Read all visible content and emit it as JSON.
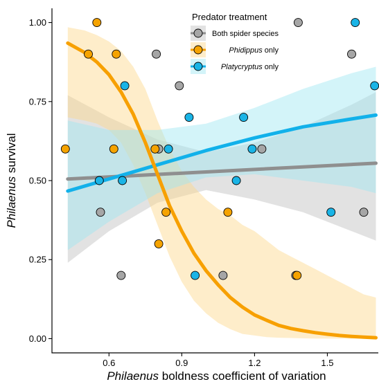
{
  "chart_data": {
    "type": "scatter",
    "xlabel_italic": "Philaenus",
    "xlabel_rest": " boldness coefficient of variation",
    "ylabel_italic": "Philaenus",
    "ylabel_rest": " survival",
    "xlim": [
      0.365,
      1.71
    ],
    "ylim": [
      -0.045,
      1.045
    ],
    "x_ticks": [
      0.6,
      0.9,
      1.2,
      1.5
    ],
    "x_tick_labels": [
      "0.6",
      "0.9",
      "1.2",
      "1.5"
    ],
    "y_ticks": [
      0,
      0.25,
      0.5,
      0.75,
      1.0
    ],
    "y_tick_labels": [
      "0.00",
      "0.25",
      "0.50",
      "0.75",
      "1.00"
    ],
    "legend": {
      "title": "Predator treatment",
      "placement": "top-right",
      "entries": [
        {
          "label": "Both spider species",
          "italic": "",
          "rest": "Both spider species"
        },
        {
          "label": "Phidippus only",
          "italic": "Phidippus",
          "rest": " only"
        },
        {
          "label": "Platycryptus only",
          "italic": "Platycryptus",
          "rest": " only"
        }
      ]
    },
    "series": [
      {
        "name": "Both spider species",
        "point_color": "#a6a6a6",
        "line_color": "#8f8f8f",
        "band_color": "#bfbfbf",
        "points": [
          {
            "x": 0.565,
            "y": 0.4
          },
          {
            "x": 0.65,
            "y": 0.2
          },
          {
            "x": 0.795,
            "y": 0.9
          },
          {
            "x": 0.805,
            "y": 0.6
          },
          {
            "x": 0.89,
            "y": 0.8
          },
          {
            "x": 1.07,
            "y": 0.2
          },
          {
            "x": 1.23,
            "y": 0.6
          },
          {
            "x": 1.37,
            "y": 0.2
          },
          {
            "x": 1.38,
            "y": 1.0
          },
          {
            "x": 1.6,
            "y": 0.9
          },
          {
            "x": 1.65,
            "y": 0.4
          }
        ],
        "fit": {
          "x": [
            0.43,
            1.7
          ],
          "y": [
            0.505,
            0.555
          ]
        },
        "band": {
          "x": [
            0.43,
            0.6,
            0.8,
            1.0,
            1.2,
            1.4,
            1.6,
            1.7
          ],
          "lower": [
            0.24,
            0.34,
            0.43,
            0.47,
            0.44,
            0.4,
            0.34,
            0.31
          ],
          "upper": [
            0.77,
            0.7,
            0.63,
            0.59,
            0.62,
            0.67,
            0.74,
            0.78
          ]
        }
      },
      {
        "name": "Phidippus only",
        "point_color": "#f5a300",
        "line_color": "#f7a000",
        "band_color": "#fcd68a",
        "points": [
          {
            "x": 0.42,
            "y": 0.6
          },
          {
            "x": 0.515,
            "y": 0.9
          },
          {
            "x": 0.55,
            "y": 1.0
          },
          {
            "x": 0.62,
            "y": 0.6
          },
          {
            "x": 0.63,
            "y": 0.9
          },
          {
            "x": 0.79,
            "y": 0.6
          },
          {
            "x": 0.805,
            "y": 0.3
          },
          {
            "x": 0.835,
            "y": 0.4
          },
          {
            "x": 1.09,
            "y": 0.4
          },
          {
            "x": 1.375,
            "y": 0.2
          }
        ],
        "fit": {
          "x": [
            0.43,
            0.5,
            0.55,
            0.6,
            0.65,
            0.7,
            0.75,
            0.8,
            0.85,
            0.9,
            0.95,
            1.0,
            1.05,
            1.1,
            1.15,
            1.2,
            1.25,
            1.3,
            1.35,
            1.4,
            1.45,
            1.5,
            1.55,
            1.6,
            1.65,
            1.7
          ],
          "y": [
            0.935,
            0.905,
            0.875,
            0.835,
            0.78,
            0.71,
            0.62,
            0.52,
            0.42,
            0.34,
            0.27,
            0.215,
            0.17,
            0.13,
            0.1,
            0.075,
            0.058,
            0.042,
            0.032,
            0.025,
            0.019,
            0.014,
            0.01,
            0.007,
            0.005,
            0.003
          ]
        },
        "band": {
          "x": [
            0.43,
            0.5,
            0.55,
            0.6,
            0.65,
            0.7,
            0.75,
            0.8,
            0.85,
            0.9,
            0.95,
            1.0,
            1.05,
            1.1,
            1.15,
            1.2,
            1.25,
            1.3,
            1.35,
            1.4,
            1.45,
            1.5,
            1.55,
            1.6,
            1.65,
            1.7
          ],
          "lower": [
            0.7,
            0.69,
            0.68,
            0.66,
            0.62,
            0.55,
            0.46,
            0.36,
            0.26,
            0.18,
            0.12,
            0.08,
            0.05,
            0.03,
            0.015,
            0.01,
            0.005,
            0.003,
            0.002,
            0.001,
            0.0,
            0.0,
            0.0,
            0.0,
            0.0,
            0.0
          ],
          "upper": [
            0.985,
            0.975,
            0.96,
            0.94,
            0.91,
            0.86,
            0.79,
            0.69,
            0.6,
            0.53,
            0.48,
            0.44,
            0.41,
            0.39,
            0.36,
            0.34,
            0.31,
            0.28,
            0.26,
            0.24,
            0.22,
            0.2,
            0.18,
            0.16,
            0.14,
            0.13
          ]
        }
      },
      {
        "name": "Platycryptus only",
        "point_color": "#1ab4e6",
        "line_color": "#12b1ea",
        "band_color": "#9ee6f2",
        "points": [
          {
            "x": 0.56,
            "y": 0.5
          },
          {
            "x": 0.655,
            "y": 0.5
          },
          {
            "x": 0.665,
            "y": 0.8
          },
          {
            "x": 0.845,
            "y": 0.6
          },
          {
            "x": 0.93,
            "y": 0.7
          },
          {
            "x": 0.955,
            "y": 0.2
          },
          {
            "x": 1.125,
            "y": 0.5
          },
          {
            "x": 1.155,
            "y": 0.7
          },
          {
            "x": 1.19,
            "y": 0.6
          },
          {
            "x": 1.515,
            "y": 0.4
          },
          {
            "x": 1.615,
            "y": 1.0
          },
          {
            "x": 1.695,
            "y": 0.8
          }
        ],
        "fit": {
          "x": [
            0.43,
            0.6,
            0.8,
            1.0,
            1.2,
            1.4,
            1.6,
            1.7
          ],
          "y": [
            0.467,
            0.505,
            0.55,
            0.595,
            0.635,
            0.67,
            0.695,
            0.707
          ]
        },
        "band": {
          "x": [
            0.43,
            0.6,
            0.8,
            1.0,
            1.2,
            1.4,
            1.6,
            1.7
          ],
          "lower": [
            0.28,
            0.37,
            0.46,
            0.51,
            0.52,
            0.5,
            0.48,
            0.46
          ],
          "upper": [
            0.69,
            0.66,
            0.66,
            0.68,
            0.73,
            0.79,
            0.84,
            0.86
          ]
        }
      }
    ]
  }
}
